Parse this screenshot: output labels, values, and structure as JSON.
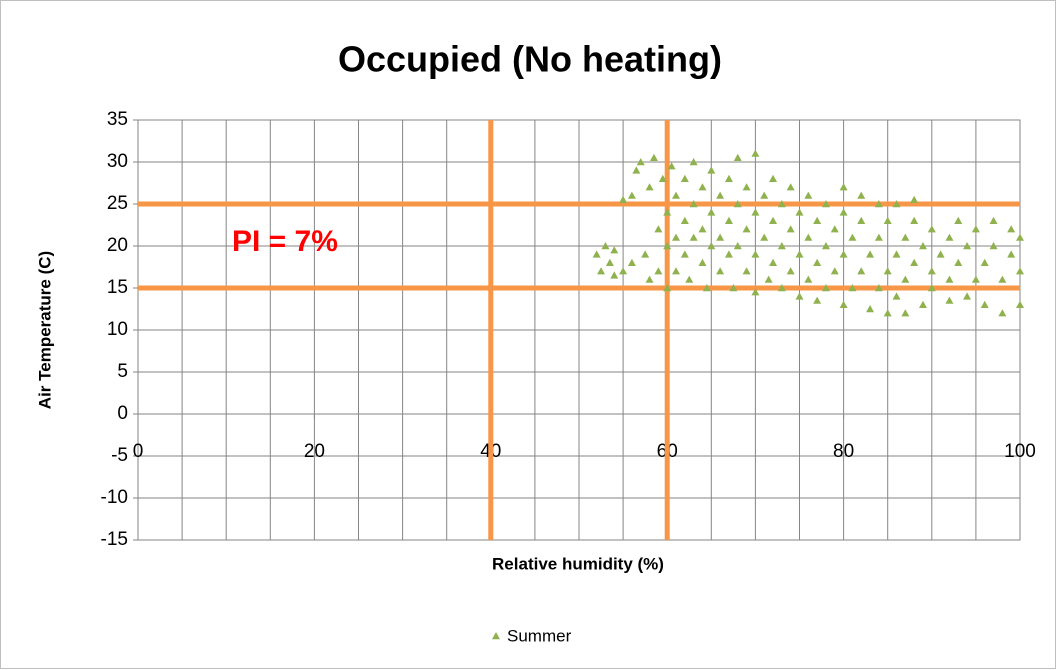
{
  "chart_data": {
    "type": "scatter",
    "title": "Occupied (No heating)",
    "x_label": "Relative humidity (%)",
    "y_label": "Air Temperature (C)",
    "annotation": "PI = 7%",
    "annotation_color": "#ff0000",
    "xlim": [
      0,
      100
    ],
    "ylim": [
      -15,
      35
    ],
    "xticks": [
      0,
      20,
      40,
      60,
      80,
      100
    ],
    "yticks": [
      -15,
      -10,
      -5,
      0,
      5,
      10,
      15,
      20,
      25,
      30,
      35
    ],
    "x_minor_grid": [
      0,
      5,
      10,
      15,
      20,
      25,
      30,
      35,
      40,
      45,
      50,
      55,
      60,
      65,
      70,
      75,
      80,
      85,
      90,
      95,
      100
    ],
    "grid": true,
    "reference_color": "#f79646",
    "hlines": [
      15,
      25
    ],
    "vlines": [
      40,
      60
    ],
    "legend": "bottom",
    "series": [
      {
        "name": "Summer",
        "color": "#8fb24f",
        "x": [
          52,
          52.5,
          53,
          53.5,
          54,
          54,
          55,
          55,
          56,
          56,
          56.5,
          57,
          57.5,
          58,
          58,
          58.5,
          59,
          59,
          59.5,
          60,
          60,
          60,
          60.5,
          61,
          61,
          61,
          62,
          62,
          62,
          62.5,
          63,
          63,
          63,
          64,
          64,
          64,
          64.5,
          65,
          65,
          65,
          66,
          66,
          66,
          67,
          67,
          67,
          67.5,
          68,
          68,
          68,
          69,
          69,
          69,
          70,
          70,
          70,
          70,
          71,
          71,
          71.5,
          72,
          72,
          72,
          73,
          73,
          73,
          74,
          74,
          74,
          75,
          75,
          75,
          76,
          76,
          76,
          77,
          77,
          77,
          78,
          78,
          78,
          79,
          79,
          80,
          80,
          80,
          80,
          81,
          81,
          82,
          82,
          82,
          83,
          83,
          84,
          84,
          84,
          85,
          85,
          85,
          86,
          86,
          86,
          87,
          87,
          87,
          88,
          88,
          88,
          89,
          89,
          90,
          90,
          90,
          91,
          92,
          92,
          92,
          93,
          93,
          94,
          94,
          95,
          95,
          96,
          96,
          97,
          97,
          98,
          98,
          99,
          99,
          100,
          100,
          100
        ],
        "values": [
          19,
          17,
          20,
          18,
          16.5,
          19.5,
          17,
          25.5,
          18,
          26,
          29,
          30,
          19,
          27,
          16,
          30.5,
          22,
          17,
          28,
          15,
          20,
          24,
          29.5,
          17,
          21,
          26,
          19,
          23,
          28,
          16,
          21,
          25,
          30,
          18,
          22,
          27,
          15,
          20,
          24,
          29,
          17,
          21,
          26,
          19,
          23,
          28,
          15,
          20,
          25,
          30.5,
          17,
          22,
          27,
          14.5,
          19,
          24,
          31,
          21,
          26,
          16,
          18,
          23,
          28,
          15,
          20,
          25,
          17,
          22,
          27,
          14,
          19,
          24,
          16,
          21,
          26,
          13.5,
          18,
          23,
          15,
          20,
          25,
          17,
          22,
          13,
          19,
          24,
          27,
          15,
          21,
          17,
          23,
          26,
          12.5,
          19,
          15,
          21,
          25,
          12,
          17,
          23,
          14,
          19,
          25,
          12,
          16,
          21,
          18,
          23,
          25.5,
          13,
          20,
          15,
          17,
          22,
          19,
          13.5,
          16,
          21,
          18,
          23,
          14,
          20,
          16,
          22,
          13,
          18,
          20,
          23,
          12,
          16,
          19,
          22,
          13,
          17,
          21
        ]
      }
    ]
  }
}
